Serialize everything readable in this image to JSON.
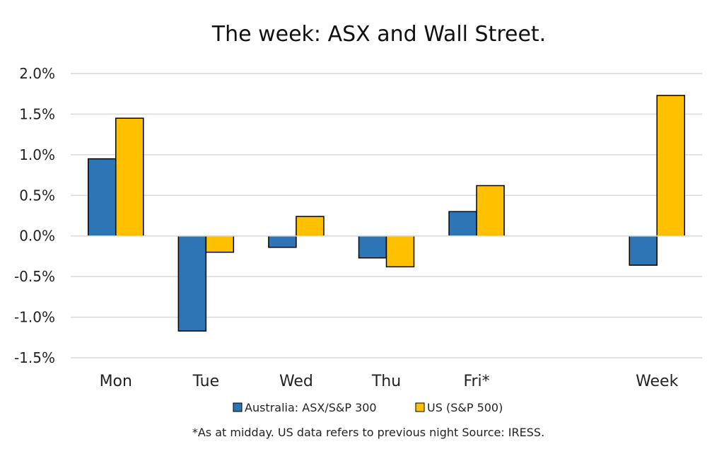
{
  "chart_data": {
    "type": "bar",
    "title": "The week:  ASX and Wall Street.",
    "categories": [
      "Mon",
      "Tue",
      "Wed",
      "Thu",
      "Fri*",
      "",
      "Week"
    ],
    "series": [
      {
        "name": "Australia: ASX/S&P 300",
        "color": "#2E75B6",
        "values": [
          0.95,
          -1.17,
          -0.14,
          -0.27,
          0.3,
          null,
          -0.36
        ]
      },
      {
        "name": "US (S&P 500)",
        "color": "#FFC000",
        "values": [
          1.45,
          -0.2,
          0.24,
          -0.38,
          0.62,
          null,
          1.73
        ]
      }
    ],
    "ylim": [
      -1.5,
      2.0
    ],
    "yticks": [
      "2.0%",
      "1.5%",
      "1.0%",
      "0.5%",
      "0.0%",
      "-0.5%",
      "-1.0%",
      "-1.5%"
    ],
    "ytick_values": [
      2.0,
      1.5,
      1.0,
      0.5,
      0.0,
      -0.5,
      -1.0,
      -1.5
    ],
    "grid": true,
    "legend_position": "bottom",
    "footnote": "*As at midday. US data refers to previous night  Source:  IRESS."
  }
}
